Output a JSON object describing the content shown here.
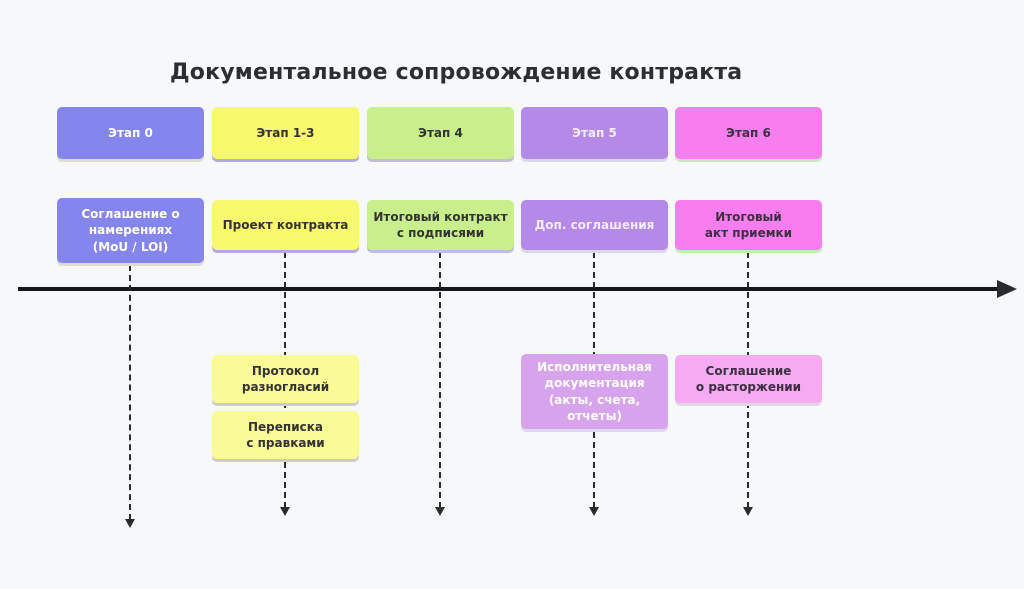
{
  "title": "Документальное сопровождение контракта",
  "columns": [
    {
      "stage_label": "Этап 0",
      "primary_doc": "Соглашение о\nнамерениях\n(MoU / LOI)",
      "secondary_docs": [],
      "colors": {
        "stage_bg": "#8585ee",
        "stage_text": "#ffffff",
        "doc_bg": "#8585ee",
        "doc_text": "#ffffff",
        "stage_shadow": "#dedccb"
      }
    },
    {
      "stage_label": "Этап 1-3",
      "primary_doc": "Проект контракта",
      "secondary_docs": [
        "Протокол\nразногласий",
        "Переписка\nс правками"
      ],
      "colors": {
        "stage_bg": "#f9f96e",
        "stage_text": "#333333",
        "doc_bg": "#f9f96e",
        "doc_text": "#333333",
        "stage_shadow": "#b3aae3",
        "sub_bg": "#fafa96",
        "sub_text": "#333333",
        "sub_shadow": "#cdc8dc"
      }
    },
    {
      "stage_label": "Этап 4",
      "primary_doc": "Итоговый контракт\nс подписями",
      "secondary_docs": [],
      "colors": {
        "stage_bg": "#c9ef8d",
        "stage_text": "#333333",
        "doc_bg": "#c9ef8d",
        "doc_text": "#333333",
        "stage_shadow": "#c3bbe2"
      }
    },
    {
      "stage_label": "Этап 5",
      "primary_doc": "Доп. соглашения",
      "secondary_docs": [
        "Исполнительная\nдокументация\n(акты, счета,\nотчеты)"
      ],
      "colors": {
        "stage_bg": "#b489e7",
        "stage_text": "#f4ecf7",
        "doc_bg": "#b489e7",
        "doc_text": "#f4ecf7",
        "stage_shadow": "#dcd6ec",
        "sub_bg": "#d7a3ec",
        "sub_text": "#ffffff",
        "sub_shadow": "#ded8ea"
      }
    },
    {
      "stage_label": "Этап 6",
      "primary_doc": "Итоговый\nакт приемки",
      "secondary_docs": [
        "Соглашение\nо расторжении"
      ],
      "colors": {
        "stage_bg": "#f87ef0",
        "stage_text": "#3d3040",
        "doc_bg": "#f87ef0",
        "doc_text": "#3d3040",
        "stage_shadow": "#c8e9c0",
        "sub_bg": "#f5aaf2",
        "sub_text": "#3d3040",
        "sub_shadow": "#e4d6e6"
      }
    }
  ],
  "timeline": {
    "axis_color": "#17171a"
  }
}
